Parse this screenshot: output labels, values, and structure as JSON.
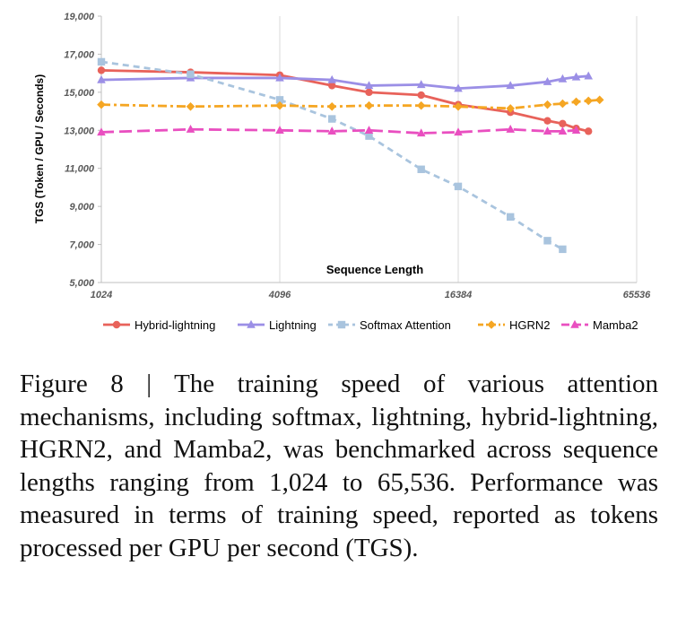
{
  "chart_data": {
    "type": "line",
    "xlabel": "Sequence Length",
    "ylabel": "TGS (Token / GPU / Seconds)",
    "x_scale": "log2",
    "xlim": [
      1024,
      65536
    ],
    "ylim": [
      5000,
      19000
    ],
    "x_ticks": [
      "1024",
      "4096",
      "16384",
      "65536"
    ],
    "y_ticks": [
      "5,000",
      "7,000",
      "9,000",
      "11,000",
      "13,000",
      "15,000",
      "17,000",
      "19,000"
    ],
    "grid": "vertical",
    "legend_position": "bottom",
    "series": [
      {
        "name": "Hybrid-lightning",
        "color": "#e8625a",
        "dash": "solid",
        "marker": "circle",
        "x": [
          1024,
          2048,
          4096,
          6144,
          8192,
          12288,
          16384,
          24576,
          32768,
          36864,
          40960,
          45056
        ],
        "y": [
          16150,
          16050,
          15900,
          15350,
          15000,
          14850,
          14350,
          13950,
          13500,
          13350,
          13100,
          12950
        ]
      },
      {
        "name": "Lightning",
        "color": "#9b8fe6",
        "dash": "solid",
        "marker": "triangle",
        "x": [
          1024,
          2048,
          4096,
          6144,
          8192,
          12288,
          16384,
          24576,
          32768,
          36864,
          40960,
          45056
        ],
        "y": [
          15650,
          15750,
          15750,
          15650,
          15350,
          15400,
          15200,
          15350,
          15550,
          15700,
          15800,
          15850
        ]
      },
      {
        "name": "Softmax Attention",
        "color": "#a9c4de",
        "dash": "dashed",
        "marker": "square",
        "x": [
          1024,
          2048,
          4096,
          6144,
          8192,
          12288,
          16384,
          24576,
          32768,
          36864
        ],
        "y": [
          16600,
          15950,
          14600,
          13600,
          12700,
          10950,
          10050,
          8450,
          7200,
          6750
        ]
      },
      {
        "name": "HGRN2",
        "color": "#f5a623",
        "dash": "dashdot",
        "marker": "diamond",
        "x": [
          1024,
          2048,
          4096,
          6144,
          8192,
          12288,
          16384,
          24576,
          32768,
          36864,
          40960,
          45056,
          49152
        ],
        "y": [
          14350,
          14250,
          14300,
          14250,
          14300,
          14300,
          14250,
          14150,
          14350,
          14400,
          14500,
          14550,
          14600
        ]
      },
      {
        "name": "Mamba2",
        "color": "#e94fc0",
        "dash": "longdash",
        "marker": "triangle",
        "x": [
          1024,
          2048,
          4096,
          6144,
          8192,
          12288,
          16384,
          24576,
          32768,
          36864,
          40960
        ],
        "y": [
          12900,
          13050,
          13000,
          12950,
          13000,
          12850,
          12900,
          13050,
          12950,
          12950,
          13000
        ]
      }
    ]
  },
  "caption": "Figure 8 | The training speed of various attention mechanisms, including softmax, lightning, hybrid-lightning, HGRN2, and Mamba2, was benchmarked across sequence lengths ranging from 1,024 to 65,536. Performance was measured in terms of training speed, reported as tokens processed per GPU per second (TGS)."
}
